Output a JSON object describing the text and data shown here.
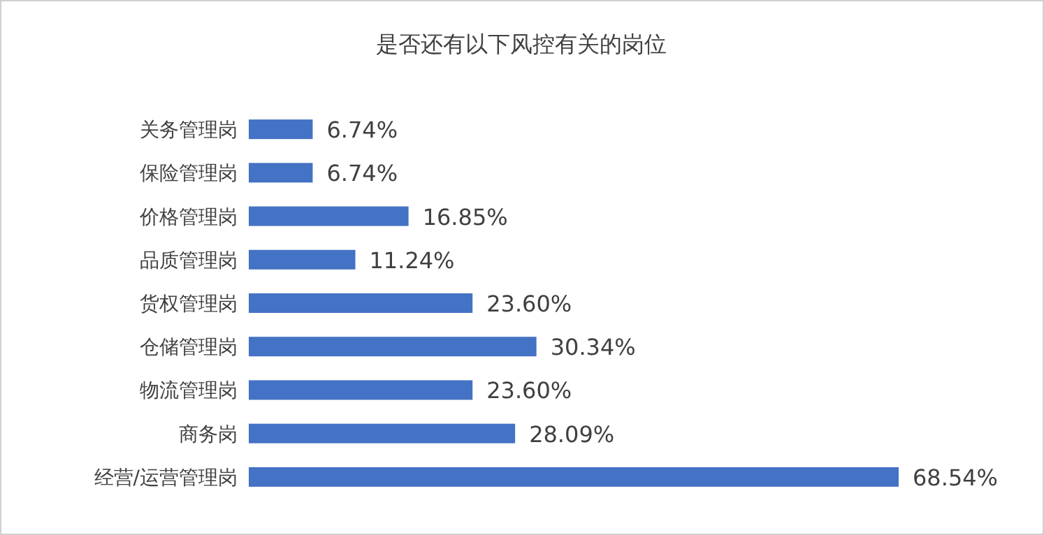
{
  "chart_data": {
    "type": "bar",
    "orientation": "horizontal",
    "title": "是否还有以下风控有关的岗位",
    "categories": [
      "关务管理岗",
      "保险管理岗",
      "价格管理岗",
      "品质管理岗",
      "货权管理岗",
      "仓储管理岗",
      "物流管理岗",
      "商务岗",
      "经营/运营管理岗"
    ],
    "values": [
      6.74,
      6.74,
      16.85,
      11.24,
      23.6,
      30.34,
      23.6,
      28.09,
      68.54
    ],
    "value_labels": [
      "6.74%",
      "6.74%",
      "16.85%",
      "11.24%",
      "23.60%",
      "30.34%",
      "23.60%",
      "28.09%",
      "68.54%"
    ],
    "color": "#4472c4"
  }
}
